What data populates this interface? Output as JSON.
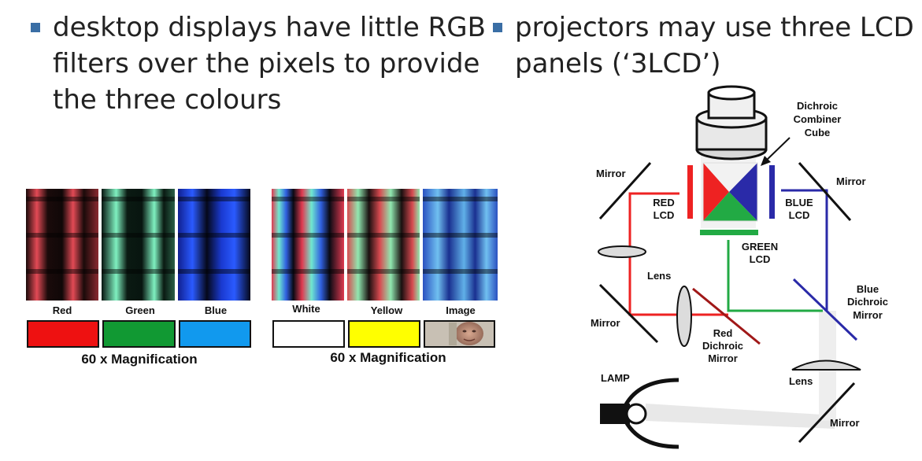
{
  "bullets": {
    "left": {
      "lines": [
        "desktop displays have little RGB",
        "filters over the pixels to provide",
        "the three colours"
      ]
    },
    "right": {
      "lines": [
        "projectors may use three LCD",
        "panels (‘3LCD’)"
      ]
    }
  },
  "figure_left": {
    "labels": [
      "Red",
      "Green",
      "Blue"
    ],
    "caption": "60 x Magnification",
    "swatch_colors": [
      "#ee1111",
      "#119933",
      "#1199ee"
    ]
  },
  "figure_middle": {
    "labels": [
      "White",
      "Yellow",
      "Image"
    ],
    "caption": "60 x Magnification",
    "swatch_colors": [
      "#ffffff",
      "#ffff00"
    ]
  },
  "diagram": {
    "dichroic_combiner_cube": [
      "Dichroic",
      "Combiner",
      "Cube"
    ],
    "mirror_top_left": "Mirror",
    "mirror_top_right": "Mirror",
    "red_lcd": [
      "RED",
      "LCD"
    ],
    "blue_lcd": [
      "BLUE",
      "LCD"
    ],
    "green_lcd": [
      "GREEN",
      "LCD"
    ],
    "lens_left": "Lens",
    "mirror_left": "Mirror",
    "red_dichroic_mirror": [
      "Red",
      "Dichroic",
      "Mirror"
    ],
    "blue_dichroic_mirror": [
      "Blue",
      "Dichroic",
      "Mirror"
    ],
    "lamp": "LAMP",
    "lens_bottom": "Lens",
    "mirror_bottom": "Mirror",
    "colors": {
      "red": "#ee2222",
      "green": "#22aa44",
      "blue": "#2a2aa8",
      "dark_red": "#a01818"
    }
  }
}
